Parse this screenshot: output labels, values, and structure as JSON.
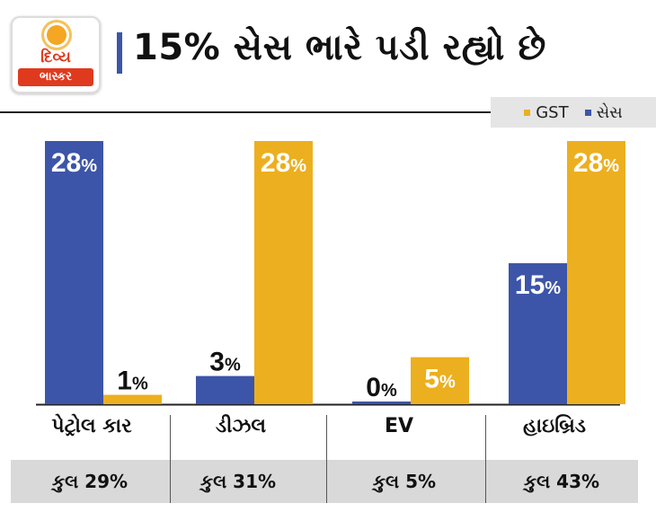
{
  "brand": {
    "line1": "દિવ્ય",
    "line2": "ભાસ્કર"
  },
  "title": "15% સેસ ભારે પડી રહ્યો છે",
  "legend": [
    {
      "name": "GST",
      "color": "#ecaf1f"
    },
    {
      "name": "સેસ",
      "color": "#3d55a8"
    }
  ],
  "chart_data": {
    "type": "bar",
    "categories": [
      "પેટ્રોલ કાર",
      "ડીઝલ",
      "EV",
      "હાઇબ્રિડ"
    ],
    "series": [
      {
        "name": "સેસ",
        "color": "#3d55a8",
        "values": [
          28,
          3,
          0,
          15
        ],
        "labels": [
          "28%",
          "3%",
          "0%",
          "15%"
        ]
      },
      {
        "name": "GST",
        "color": "#ecaf1f",
        "values": [
          1,
          28,
          5,
          28
        ],
        "labels": [
          "1%",
          "28%",
          "5%",
          "28%"
        ]
      }
    ],
    "ylim": [
      0,
      28
    ],
    "totals": [
      "કુલ 29%",
      "કુલ 31%",
      "કુલ 5%",
      "કુલ 43%"
    ]
  }
}
